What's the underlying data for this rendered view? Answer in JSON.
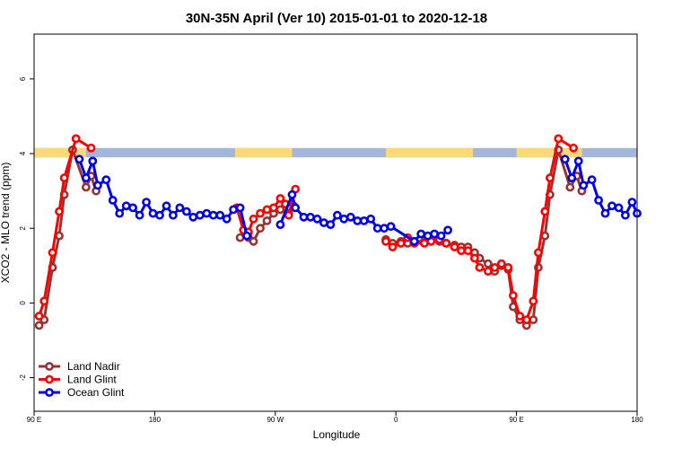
{
  "chart_data": {
    "type": "line",
    "title": "30N-35N April (Ver 10)   2015-01-01 to 2020-12-18",
    "xlabel": "Longitude",
    "ylabel": "XCO2 - MLO trend (ppm)",
    "xlim": [
      0,
      360
    ],
    "ylim": [
      -2.9,
      7.2
    ],
    "x_ticks": [
      {
        "value": 0,
        "label": "90 E"
      },
      {
        "value": 72,
        "label": "180"
      },
      {
        "value": 144,
        "label": "90 W"
      },
      {
        "value": 216,
        "label": "0"
      },
      {
        "value": 288,
        "label": "90 E"
      },
      {
        "value": 360,
        "label": "180"
      }
    ],
    "y_ticks": [
      -2,
      0,
      2,
      4,
      6
    ],
    "y_tick_labels": [
      "-2",
      "0",
      "2",
      "4",
      "6"
    ],
    "legend_position": "bottom-left",
    "land_ocean_band": {
      "y_range": [
        3.9,
        4.15
      ],
      "ocean_color": "#A4B6DA",
      "land_color": "#FBD97B",
      "land_spans": [
        [
          0,
          31
        ],
        [
          120,
          154
        ],
        [
          210,
          262
        ],
        [
          288,
          327
        ]
      ]
    },
    "series": [
      {
        "name": "Land Nadir",
        "color": "#993333",
        "points": [
          [
            3,
            -0.6
          ],
          [
            6,
            -0.45
          ],
          [
            11,
            0.95
          ],
          [
            15,
            1.8
          ],
          [
            18,
            2.9
          ],
          [
            23,
            4.1
          ],
          [
            31,
            3.1
          ],
          [
            34,
            3.4
          ],
          [
            37,
            3.0
          ],
          [
            123,
            1.75
          ],
          [
            128,
            1.75
          ],
          [
            131,
            1.65
          ],
          [
            135,
            2.0
          ],
          [
            139,
            2.2
          ],
          [
            143,
            2.4
          ],
          [
            147,
            2.5
          ],
          [
            152,
            2.4
          ],
          [
            155,
            2.6
          ],
          [
            210,
            1.7
          ],
          [
            214,
            1.6
          ],
          [
            219,
            1.65
          ],
          [
            223,
            1.6
          ],
          [
            227,
            1.65
          ],
          [
            233,
            1.65
          ],
          [
            237,
            1.7
          ],
          [
            242,
            1.65
          ],
          [
            246,
            1.6
          ],
          [
            251,
            1.55
          ],
          [
            255,
            1.5
          ],
          [
            259,
            1.5
          ],
          [
            263,
            1.35
          ],
          [
            266,
            1.2
          ],
          [
            271,
            1.05
          ],
          [
            275,
            0.85
          ],
          [
            279,
            1.0
          ],
          [
            283,
            0.9
          ],
          [
            286,
            -0.1
          ],
          [
            290,
            -0.45
          ],
          [
            294,
            -0.6
          ],
          [
            298,
            -0.45
          ],
          [
            301,
            0.95
          ],
          [
            305,
            1.8
          ],
          [
            308,
            2.9
          ],
          [
            313,
            4.1
          ],
          [
            320,
            3.1
          ],
          [
            324,
            3.4
          ],
          [
            327,
            3.0
          ]
        ]
      },
      {
        "name": "Land Glint",
        "color": "#FF0000",
        "points": [
          [
            3,
            -0.35
          ],
          [
            6,
            0.05
          ],
          [
            11,
            1.35
          ],
          [
            15,
            2.45
          ],
          [
            18,
            3.35
          ],
          [
            25,
            4.4
          ],
          [
            34,
            4.15
          ],
          [
            121,
            2.55
          ],
          [
            125,
            1.95
          ],
          [
            128,
            1.9
          ],
          [
            131,
            2.25
          ],
          [
            135,
            2.4
          ],
          [
            139,
            2.5
          ],
          [
            143,
            2.55
          ],
          [
            147,
            2.8
          ],
          [
            150,
            2.65
          ],
          [
            152,
            2.35
          ],
          [
            156,
            3.05
          ],
          [
            210,
            1.65
          ],
          [
            214,
            1.5
          ],
          [
            219,
            1.6
          ],
          [
            223,
            1.75
          ],
          [
            227,
            1.6
          ],
          [
            233,
            1.6
          ],
          [
            237,
            1.65
          ],
          [
            242,
            1.7
          ],
          [
            246,
            1.6
          ],
          [
            251,
            1.5
          ],
          [
            255,
            1.4
          ],
          [
            259,
            1.4
          ],
          [
            263,
            1.2
          ],
          [
            266,
            0.95
          ],
          [
            271,
            0.85
          ],
          [
            275,
            0.95
          ],
          [
            279,
            1.05
          ],
          [
            283,
            0.95
          ],
          [
            286,
            0.2
          ],
          [
            290,
            -0.35
          ],
          [
            294,
            -0.45
          ],
          [
            298,
            0.05
          ],
          [
            301,
            1.35
          ],
          [
            305,
            2.45
          ],
          [
            308,
            3.35
          ],
          [
            313,
            4.4
          ],
          [
            322,
            4.15
          ]
        ]
      },
      {
        "name": "Ocean Glint",
        "color": "#0000EE",
        "points": [
          [
            27,
            3.85
          ],
          [
            31,
            3.35
          ],
          [
            35,
            3.8
          ],
          [
            38,
            3.15
          ],
          [
            43,
            3.3
          ],
          [
            47,
            2.75
          ],
          [
            51,
            2.4
          ],
          [
            55,
            2.6
          ],
          [
            59,
            2.55
          ],
          [
            63,
            2.35
          ],
          [
            67,
            2.7
          ],
          [
            71,
            2.4
          ],
          [
            75,
            2.35
          ],
          [
            79,
            2.6
          ],
          [
            83,
            2.35
          ],
          [
            87,
            2.55
          ],
          [
            91,
            2.45
          ],
          [
            95,
            2.3
          ],
          [
            99,
            2.35
          ],
          [
            103,
            2.4
          ],
          [
            107,
            2.35
          ],
          [
            111,
            2.35
          ],
          [
            115,
            2.25
          ],
          [
            119,
            2.5
          ],
          [
            123,
            2.55
          ],
          [
            127,
            1.8
          ],
          [
            147,
            2.1
          ],
          [
            154,
            2.9
          ],
          [
            156,
            2.55
          ],
          [
            161,
            2.3
          ],
          [
            165,
            2.3
          ],
          [
            169,
            2.25
          ],
          [
            173,
            2.15
          ],
          [
            177,
            2.1
          ],
          [
            181,
            2.35
          ],
          [
            185,
            2.25
          ],
          [
            189,
            2.3
          ],
          [
            193,
            2.2
          ],
          [
            197,
            2.2
          ],
          [
            201,
            2.25
          ],
          [
            205,
            2.0
          ],
          [
            209,
            2.0
          ],
          [
            213,
            2.05
          ],
          [
            227,
            1.65
          ],
          [
            231,
            1.85
          ],
          [
            235,
            1.8
          ],
          [
            239,
            1.85
          ],
          [
            243,
            1.8
          ],
          [
            247,
            1.95
          ],
          [
            317,
            3.85
          ],
          [
            321,
            3.35
          ],
          [
            325,
            3.8
          ],
          [
            328,
            3.15
          ],
          [
            333,
            3.3
          ],
          [
            337,
            2.75
          ],
          [
            341,
            2.4
          ],
          [
            345,
            2.6
          ],
          [
            349,
            2.55
          ],
          [
            353,
            2.35
          ],
          [
            357,
            2.7
          ],
          [
            360,
            2.4
          ]
        ]
      }
    ]
  }
}
